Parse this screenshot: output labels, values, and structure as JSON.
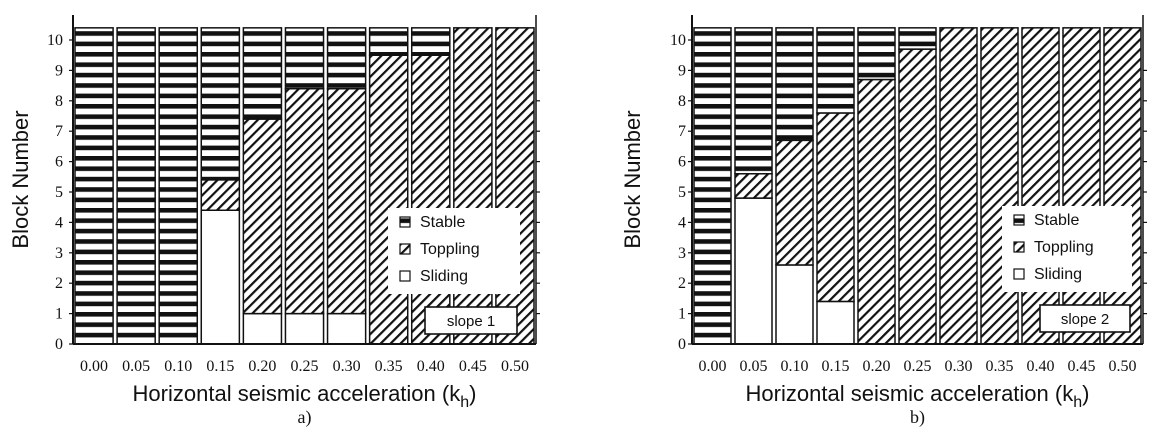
{
  "chart_data": [
    {
      "type": "bar",
      "panel_label": "a)",
      "xlabel": "Horizontal seismic acceleration (k",
      "xlabel_sub": "h",
      "xlabel_close": ")",
      "ylabel": "Block Number",
      "categories": [
        "0.00",
        "0.05",
        "0.10",
        "0.15",
        "0.20",
        "0.25",
        "0.30",
        "0.35",
        "0.40",
        "0.45",
        "0.50"
      ],
      "y_ticks": [
        "0",
        "1",
        "2",
        "3",
        "4",
        "5",
        "6",
        "7",
        "8",
        "9",
        "10"
      ],
      "ylim": [
        0,
        10
      ],
      "annotation": "slope 1",
      "legend": [
        "Stable",
        "Toppling",
        "Sliding"
      ],
      "legend_position": "bottom-right",
      "sliding_top": [
        0,
        0,
        0,
        4.4,
        1,
        1,
        1,
        0,
        0,
        0,
        0
      ],
      "toppling_top": [
        0,
        0,
        0,
        5.4,
        7.4,
        8.4,
        8.4,
        9.5,
        9.5,
        10.4,
        10.4
      ]
    },
    {
      "type": "bar",
      "panel_label": "b)",
      "xlabel": "Horizontal seismic acceleration (k",
      "xlabel_sub": "h",
      "xlabel_close": ")",
      "ylabel": "Block Number",
      "categories": [
        "0.00",
        "0.05",
        "0.10",
        "0.15",
        "0.20",
        "0.25",
        "0.30",
        "0.35",
        "0.40",
        "0.45",
        "0.50"
      ],
      "y_ticks": [
        "0",
        "1",
        "2",
        "3",
        "4",
        "5",
        "6",
        "7",
        "8",
        "9",
        "10"
      ],
      "ylim": [
        0,
        10
      ],
      "annotation": "slope 2",
      "legend": [
        "Stable",
        "Toppling",
        "Sliding"
      ],
      "legend_position": "bottom-right",
      "sliding_top": [
        0,
        4.8,
        2.6,
        1.4,
        0,
        0,
        0,
        0,
        0,
        0,
        0
      ],
      "toppling_top": [
        0,
        5.6,
        6.7,
        7.6,
        8.7,
        9.7,
        10.4,
        10.4,
        10.4,
        10.4,
        10.4
      ]
    }
  ],
  "colors": {
    "ink": "#111111",
    "sliding": "#ffffff",
    "stable_stripe": "#111111",
    "hatch": "#111111"
  }
}
